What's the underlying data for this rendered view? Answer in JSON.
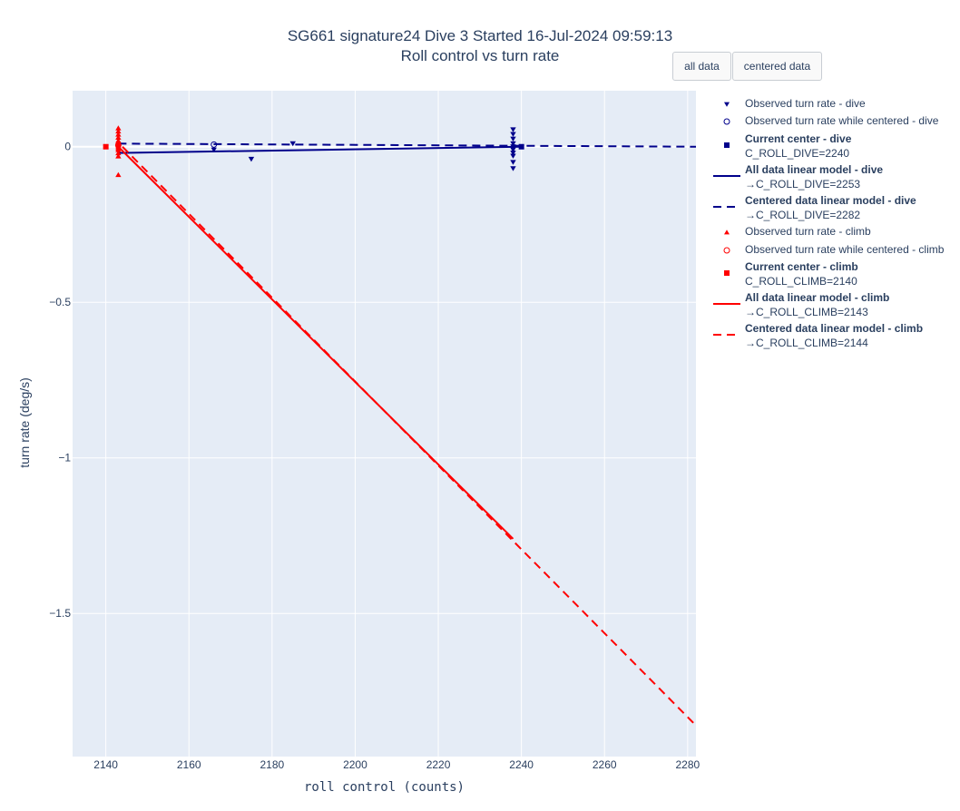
{
  "title": "SG661 signature24 Dive 3 Started 16-Jul-2024 09:59:13",
  "subtitle": "Roll control vs turn rate",
  "buttons": {
    "all_data": "all data",
    "centered_data": "centered data"
  },
  "colors": {
    "dive": "#00008b",
    "climb": "#ff0000",
    "plot_bg": "#e5ecf6",
    "grid": "#ffffff"
  },
  "legend": [
    {
      "line1": "Observed turn rate - dive",
      "line2": "",
      "bold": false,
      "symbol": "triangle-down",
      "color": "#00008b"
    },
    {
      "line1": "Observed turn rate while centered - dive",
      "line2": "",
      "bold": false,
      "symbol": "circle-open",
      "color": "#00008b"
    },
    {
      "line1": "Current center - dive",
      "line2": "C_ROLL_DIVE=2240",
      "bold": true,
      "symbol": "square",
      "color": "#00008b"
    },
    {
      "line1": "All data linear model - dive",
      "line2": "→C_ROLL_DIVE=2253",
      "bold": true,
      "symbol": "line-solid",
      "color": "#00008b"
    },
    {
      "line1": "Centered data linear model - dive",
      "line2": "→C_ROLL_DIVE=2282",
      "bold": true,
      "symbol": "line-dash",
      "color": "#00008b"
    },
    {
      "line1": "Observed turn rate - climb",
      "line2": "",
      "bold": false,
      "symbol": "triangle-up",
      "color": "#ff0000"
    },
    {
      "line1": "Observed turn rate while centered - climb",
      "line2": "",
      "bold": false,
      "symbol": "circle-open",
      "color": "#ff0000"
    },
    {
      "line1": "Current center - climb",
      "line2": "C_ROLL_CLIMB=2140",
      "bold": true,
      "symbol": "square",
      "color": "#ff0000"
    },
    {
      "line1": "All data linear model - climb",
      "line2": "→C_ROLL_CLIMB=2143",
      "bold": true,
      "symbol": "line-solid",
      "color": "#ff0000"
    },
    {
      "line1": "Centered data linear model - climb",
      "line2": "→C_ROLL_CLIMB=2144",
      "bold": true,
      "symbol": "line-dash",
      "color": "#ff0000"
    }
  ],
  "chart_data": {
    "type": "scatter",
    "title": "SG661 signature24 Dive 3 Started 16-Jul-2024 09:59:13",
    "subtitle": "Roll control vs turn rate",
    "xlabel": "roll control (counts)",
    "ylabel": "turn rate (deg/s)",
    "xlim": [
      2132,
      2282
    ],
    "ylim": [
      -1.96,
      0.18
    ],
    "xticks": [
      2140,
      2160,
      2180,
      2200,
      2220,
      2240,
      2260,
      2280
    ],
    "yticks": [
      0,
      -0.5,
      -1,
      -1.5
    ],
    "ytick_labels": [
      "0",
      "−0.5",
      "−1",
      "−1.5"
    ],
    "grid": true,
    "legend_position": "right",
    "series": [
      {
        "name": "Observed turn rate - dive",
        "mode": "markers",
        "marker": "triangle-down",
        "color": "#00008b",
        "x": [
          2166,
          2175,
          2185,
          2238,
          2238,
          2238,
          2238,
          2238,
          2238,
          2238,
          2238,
          2238,
          2238,
          2238
        ],
        "y": [
          -0.01,
          -0.04,
          0.01,
          0.055,
          0.025,
          0.01,
          0.0,
          -0.01,
          -0.02,
          -0.03,
          -0.05,
          -0.07,
          0.04,
          -0.005
        ]
      },
      {
        "name": "Observed turn rate while centered - dive",
        "mode": "markers",
        "marker": "circle-open",
        "color": "#00008b",
        "x": [
          2166
        ],
        "y": [
          0.007
        ]
      },
      {
        "name": "Current center - dive",
        "mode": "markers",
        "marker": "square",
        "color": "#00008b",
        "x": [
          2240
        ],
        "y": [
          0.0
        ]
      },
      {
        "name": "All data linear model - dive",
        "mode": "line",
        "dash": "solid",
        "color": "#00008b",
        "x": [
          2143,
          2240
        ],
        "y": [
          -0.02,
          0.0
        ]
      },
      {
        "name": "Centered data linear model - dive",
        "mode": "line",
        "dash": "dash",
        "color": "#00008b",
        "x": [
          2143,
          2282
        ],
        "y": [
          0.01,
          0.0
        ]
      },
      {
        "name": "Observed turn rate - climb",
        "mode": "markers",
        "marker": "triangle-up",
        "color": "#ff0000",
        "x": [
          2143,
          2143,
          2143,
          2143,
          2143,
          2143,
          2143,
          2143,
          2143,
          2143,
          2143,
          2143,
          2143,
          2143
        ],
        "y": [
          0.06,
          0.05,
          0.03,
          0.02,
          0.01,
          0.005,
          0.0,
          -0.005,
          -0.01,
          -0.02,
          -0.03,
          -0.09,
          0.04,
          0.015
        ]
      },
      {
        "name": "Observed turn rate while centered - climb",
        "mode": "markers",
        "marker": "circle-open",
        "color": "#ff0000",
        "x": [
          2143
        ],
        "y": [
          0.005
        ]
      },
      {
        "name": "Current center - climb",
        "mode": "markers",
        "marker": "square",
        "color": "#ff0000",
        "x": [
          2140
        ],
        "y": [
          0.0
        ]
      },
      {
        "name": "All data linear model - climb",
        "mode": "line",
        "dash": "solid",
        "color": "#ff0000",
        "x": [
          2143,
          2238
        ],
        "y": [
          0.0,
          -1.26
        ]
      },
      {
        "name": "Centered data linear model - climb",
        "mode": "line",
        "dash": "dash",
        "color": "#ff0000",
        "x": [
          2144,
          2282
        ],
        "y": [
          0.0,
          -1.86
        ]
      }
    ]
  }
}
